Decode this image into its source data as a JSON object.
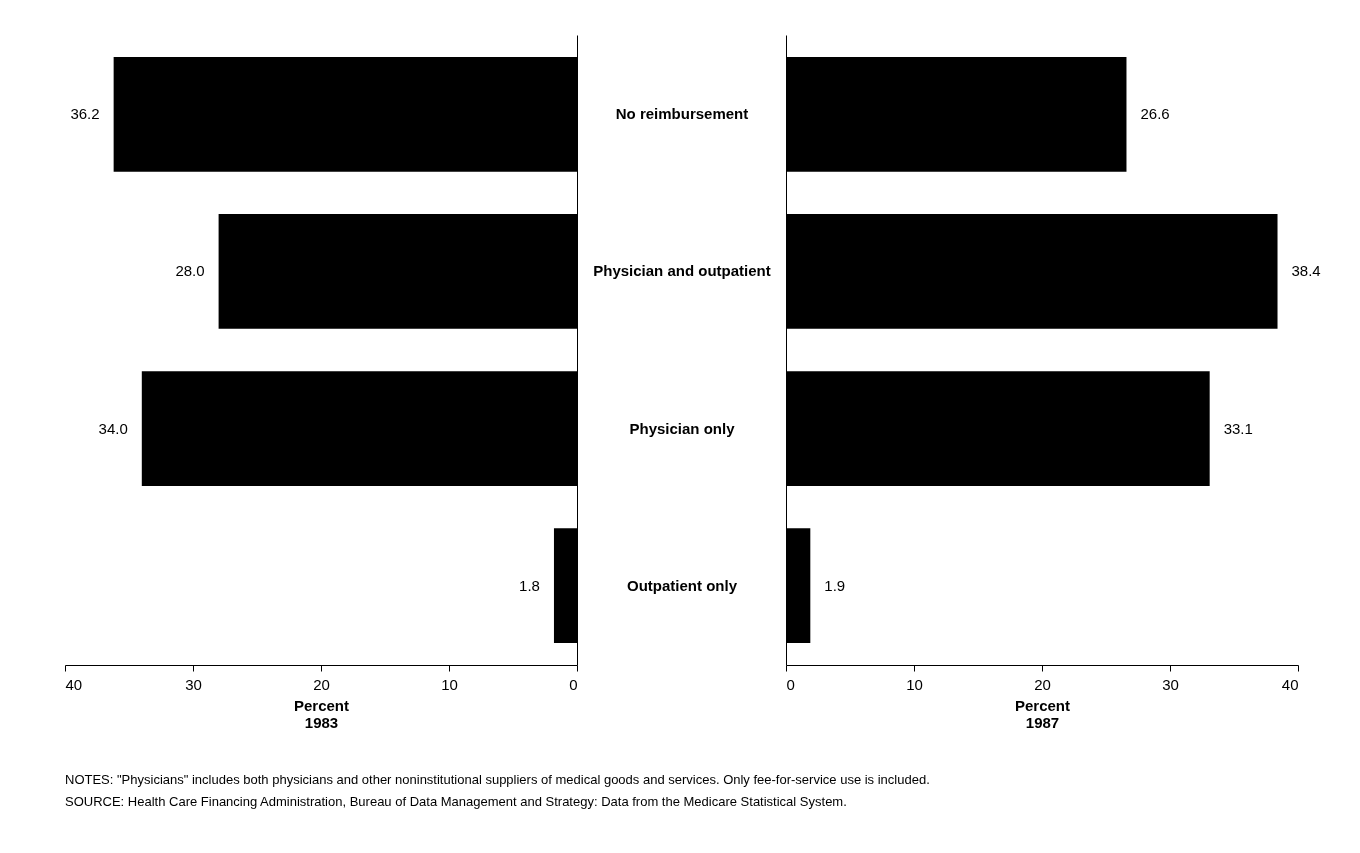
{
  "chart_data": [
    {
      "type": "bar",
      "orientation": "horizontal",
      "categories": [
        "No reimbursement",
        "Physician and outpatient",
        "Physician only",
        "Outpatient only"
      ],
      "values": [
        36.2,
        28.0,
        34.0,
        1.8
      ],
      "value_labels": [
        "36.2",
        "28.0",
        "34.0",
        "1.8"
      ],
      "color": "#000000",
      "xlim": [
        40,
        0
      ],
      "xticks": [
        40,
        30,
        20,
        10,
        0
      ],
      "xlabel": "Percent\n1983",
      "grid": false,
      "annotations": [
        "NOTES: \"Physicians\" includes both physicians and other noninstitutional suppliers of medical goods and services.  Only fee-for-service use is included.",
        "SOURCE: Health Care Financing Administration, Bureau of Data Management and Strategy: Data from the Medicare Statistical System."
      ]
    },
    {
      "type": "bar",
      "orientation": "horizontal",
      "categories": [
        null,
        null,
        null,
        null
      ],
      "values": [
        26.6,
        38.4,
        33.1,
        1.9
      ],
      "value_labels": [
        "26.6",
        "38.4",
        "33.1",
        "1.9"
      ],
      "color": "#000000",
      "xlim": [
        0,
        40
      ],
      "xticks": [
        0,
        10,
        20,
        30,
        40
      ],
      "xlabel": "Percent\n1987",
      "grid": false,
      "tick_labels": "x"
    }
  ]
}
